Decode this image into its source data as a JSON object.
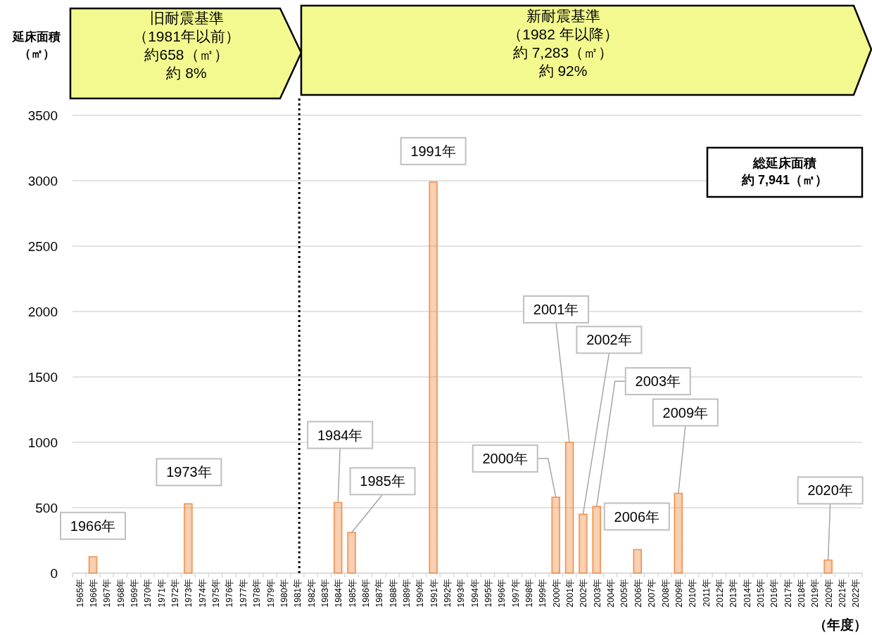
{
  "chart_data": {
    "type": "bar",
    "ylabel": "延床面積（㎡）",
    "xlabel": "（年度）",
    "categories": [
      "1965年",
      "1966年",
      "1967年",
      "1968年",
      "1969年",
      "1970年",
      "1971年",
      "1972年",
      "1973年",
      "1974年",
      "1975年",
      "1976年",
      "1977年",
      "1978年",
      "1979年",
      "1980年",
      "1981年",
      "1982年",
      "1983年",
      "1984年",
      "1985年",
      "1986年",
      "1987年",
      "1988年",
      "1989年",
      "1990年",
      "1991年",
      "1992年",
      "1993年",
      "1994年",
      "1995年",
      "1996年",
      "1997年",
      "1998年",
      "1999年",
      "2000年",
      "2001年",
      "2002年",
      "2003年",
      "2004年",
      "2005年",
      "2006年",
      "2007年",
      "2008年",
      "2009年",
      "2010年",
      "2011年",
      "2012年",
      "2013年",
      "2014年",
      "2015年",
      "2016年",
      "2017年",
      "2018年",
      "2019年",
      "2020年",
      "2021年",
      "2022年"
    ],
    "values": [
      null,
      125,
      null,
      null,
      null,
      null,
      null,
      null,
      530,
      null,
      null,
      null,
      null,
      null,
      null,
      null,
      null,
      null,
      null,
      540,
      310,
      null,
      null,
      null,
      null,
      null,
      2990,
      null,
      null,
      null,
      null,
      null,
      null,
      null,
      null,
      580,
      1000,
      450,
      510,
      null,
      null,
      180,
      null,
      null,
      610,
      null,
      null,
      null,
      null,
      null,
      null,
      null,
      null,
      null,
      null,
      100,
      null,
      null
    ],
    "color": "#f0904a",
    "ylim": [
      0,
      3500
    ],
    "yticks": [
      0,
      500,
      1000,
      1500,
      2000,
      2500,
      3000,
      3500
    ],
    "grid": "y",
    "ref_lines": [
      {
        "axis": "x",
        "value": "1981年",
        "line_style": "dotted",
        "color": "#000000"
      }
    ],
    "annotations": [
      "旧耐震基準",
      "（1981年以前）",
      "約658（㎡）",
      "約 8%",
      "新耐震基準",
      "（1982 年以降）",
      "約 7,283（㎡）",
      "約 92%",
      "総延床面積",
      "約 7,941（㎡）",
      {
        "text": "1966年",
        "x": "1966年",
        "y": 125
      },
      {
        "text": "1973年",
        "x": "1973年",
        "y": 530
      },
      {
        "text": "1984年",
        "x": "1984年",
        "y": 540
      },
      {
        "text": "1985年",
        "x": "1985年",
        "y": 310
      },
      {
        "text": "1991年",
        "x": "1991年",
        "y": 2990
      },
      {
        "text": "2000年",
        "x": "2000年",
        "y": 580
      },
      {
        "text": "2001年",
        "x": "2001年",
        "y": 1000
      },
      {
        "text": "2002年",
        "x": "2002年",
        "y": 450
      },
      {
        "text": "2003年",
        "x": "2003年",
        "y": 510
      },
      {
        "text": "2006年",
        "x": "2006年",
        "y": 180
      },
      {
        "text": "2009年",
        "x": "2009年",
        "y": 610
      },
      {
        "text": "2020年",
        "x": "2020年",
        "y": 100
      }
    ]
  }
}
